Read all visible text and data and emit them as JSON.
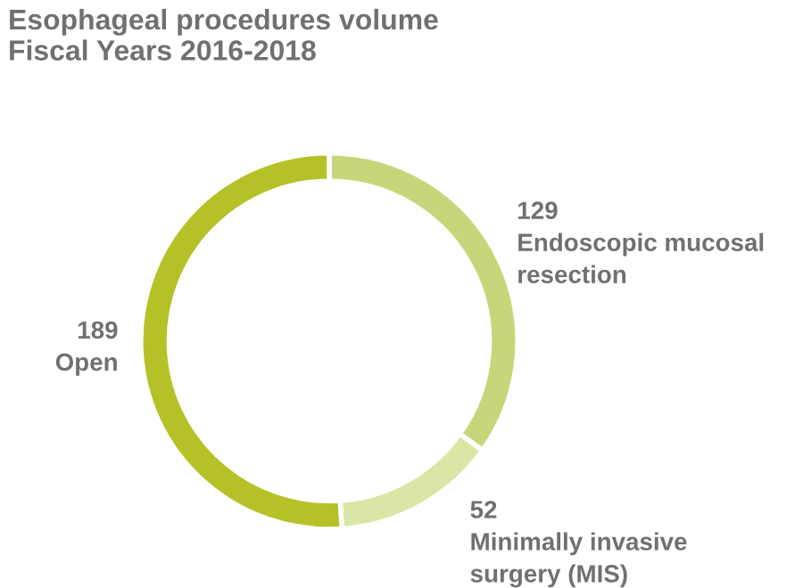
{
  "chart_data": {
    "type": "donut",
    "title": "Esophageal procedures volume\nFiscal Years 2016-2018",
    "categories": [
      "Endoscopic mucosal\nresection",
      "Minimally invasive\nsurgery (MIS)",
      "Open"
    ],
    "values": [
      129,
      52,
      189
    ],
    "colors": [
      "#c9d57a",
      "#dbe5a6",
      "#b4c227"
    ],
    "data_labels": true,
    "legend": false
  }
}
